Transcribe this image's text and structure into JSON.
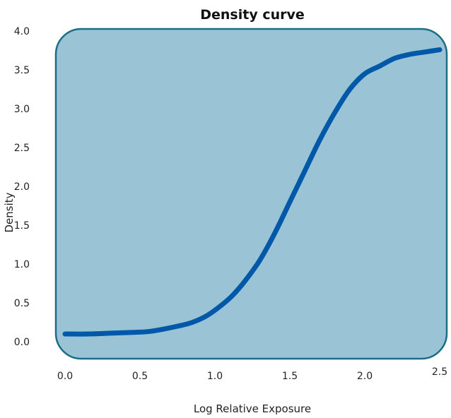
{
  "chart_data": {
    "type": "line",
    "title": "Density curve",
    "xlabel": "Log Relative Exposure",
    "ylabel": "Density",
    "xlim": [
      0,
      2.5
    ],
    "ylim": [
      0,
      4
    ],
    "xticks": [
      "0.0",
      "0.5",
      "1.0",
      "1.5",
      "2.0",
      "2.5"
    ],
    "yticks": [
      "0.0",
      "0.5",
      "1.0",
      "1.5",
      "2.0",
      "2.5",
      "3.0",
      "3.5",
      "4.0"
    ],
    "grid": false,
    "legend": "none",
    "series": [
      {
        "x": [
          0.0,
          0.15,
          0.3,
          0.45,
          0.55,
          0.65,
          0.75,
          0.85,
          0.95,
          1.05,
          1.12,
          1.2,
          1.3,
          1.4,
          1.5,
          1.6,
          1.7,
          1.8,
          1.9,
          2.0,
          2.1,
          2.2,
          2.3,
          2.4,
          2.5
        ],
        "y": [
          0.1,
          0.1,
          0.11,
          0.12,
          0.13,
          0.16,
          0.2,
          0.25,
          0.34,
          0.48,
          0.6,
          0.78,
          1.05,
          1.4,
          1.8,
          2.2,
          2.6,
          2.95,
          3.25,
          3.45,
          3.55,
          3.65,
          3.7,
          3.73,
          3.76
        ]
      }
    ],
    "colors": {
      "plot_background": "#9ac4d6",
      "plot_border": "#1a6f86",
      "line": "#0059a8"
    }
  }
}
